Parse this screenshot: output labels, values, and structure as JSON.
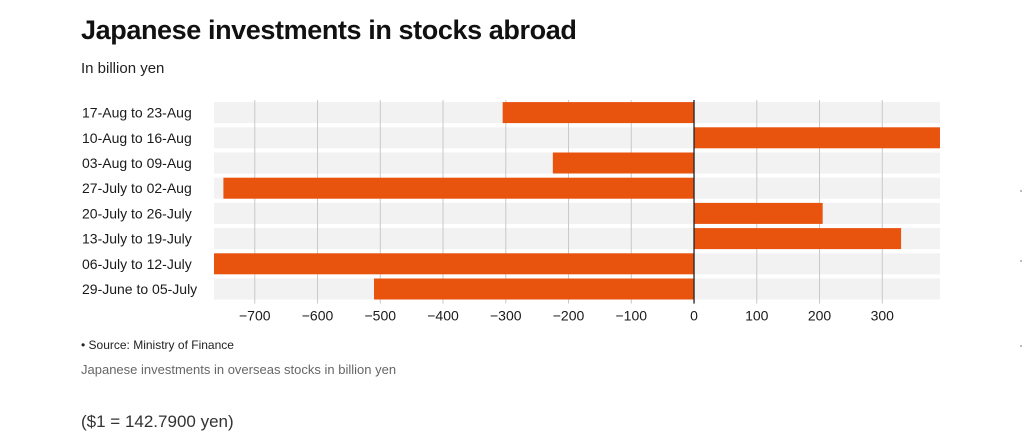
{
  "title": "Japanese investments in stocks abroad",
  "subtitle": "In billion yen",
  "source": "• Source: Ministry of Finance",
  "caption": "Japanese investments in overseas stocks in billion yen",
  "note": "($1 = 142.7900 yen)",
  "colors": {
    "bar": "#e8530e",
    "band": "#f2f2f2",
    "grid": "#c8c8c8",
    "zero": "#222222"
  },
  "chart_data": {
    "type": "bar",
    "orientation": "horizontal",
    "categories": [
      "17-Aug to 23-Aug",
      "10-Aug to 16-Aug",
      "03-Aug to 09-Aug",
      "27-July to 02-Aug",
      "20-July to 26-July",
      "13-July to 19-July",
      "06-July to 12-July",
      "29-June to 05-July"
    ],
    "values": [
      -305,
      392,
      -225,
      -750,
      205,
      330,
      -765,
      -510
    ],
    "xlim": [
      -765,
      392
    ],
    "xticks": [
      -700,
      -600,
      -500,
      -400,
      -300,
      -200,
      -100,
      0,
      100,
      200,
      300
    ],
    "xtick_labels": [
      "−700",
      "−600",
      "−500",
      "−400",
      "−300",
      "−200",
      "−100",
      "0",
      "100",
      "200",
      "300"
    ],
    "grid": true,
    "legend": "none"
  }
}
